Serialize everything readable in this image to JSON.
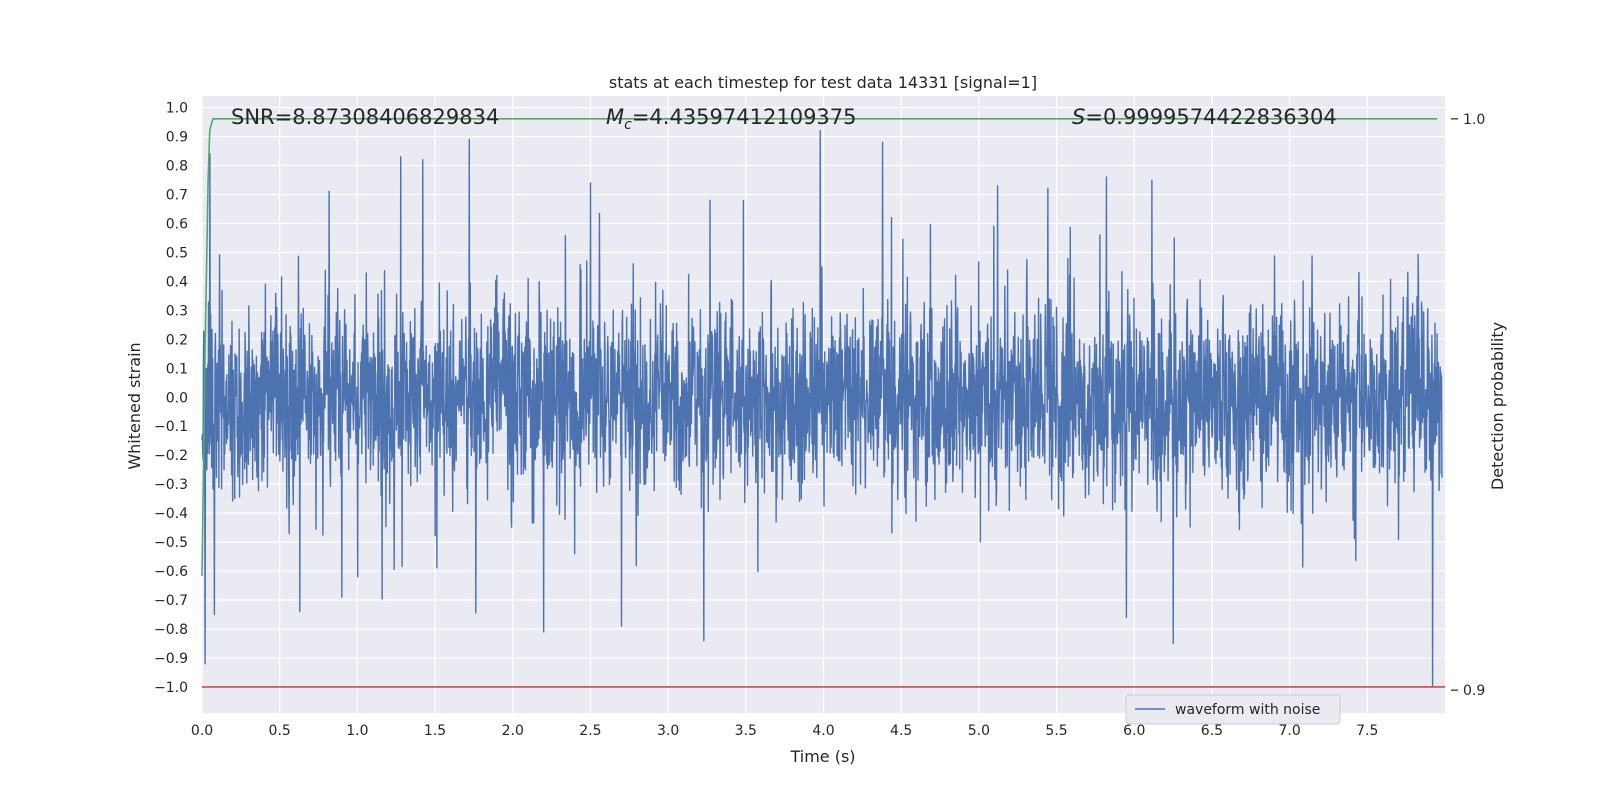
{
  "chart_data": {
    "type": "line",
    "title": "stats at each timestep for test data 14331 [signal=1]",
    "xlabel": "Time (s)",
    "ylabel": "Whitened strain",
    "y2label": "Detection probability",
    "xlim": [
      0.0,
      8.0
    ],
    "ylim": [
      -1.09,
      1.04
    ],
    "y2lim": [
      0.896,
      1.004
    ],
    "x_ticks": [
      "0.0",
      "0.5",
      "1.0",
      "1.5",
      "2.0",
      "2.5",
      "3.0",
      "3.5",
      "4.0",
      "4.5",
      "5.0",
      "5.5",
      "6.0",
      "6.5",
      "7.0",
      "7.5"
    ],
    "y_ticks": [
      "1.0",
      "0.9",
      "0.8",
      "0.7",
      "0.6",
      "0.5",
      "0.4",
      "0.3",
      "0.2",
      "0.1",
      "0.0",
      "−0.1",
      "−0.2",
      "−0.3",
      "−0.4",
      "−0.5",
      "−0.6",
      "−0.7",
      "−0.8",
      "−0.9",
      "−1.0"
    ],
    "y2_ticks": [
      "1.0",
      "0.9"
    ],
    "grid": true,
    "legend_position": "lower-right",
    "annotations": {
      "snr": "SNR=8.87308406829834",
      "mc_symbol": "M",
      "mc_sub": "c",
      "mc_value": "=4.43597412109375",
      "s_symbol": "S",
      "s_value": "=0.9999574422836304"
    },
    "series": [
      {
        "name": "waveform with noise",
        "axis": "left",
        "color": "#4c72b0",
        "noise_description": "dense whitened strain noise, roughly ±0.35 with spikes",
        "spikes_x": [
          0.02,
          0.05,
          0.08,
          0.63,
          0.9,
          1.28,
          1.42,
          1.72,
          2.2,
          2.5,
          2.7,
          3.23,
          3.27,
          3.98,
          4.38,
          5.12,
          5.82,
          5.95,
          6.25,
          7.92
        ],
        "spikes_y": [
          -0.92,
          0.84,
          -0.75,
          -0.74,
          -0.69,
          0.83,
          0.82,
          0.89,
          -0.81,
          0.74,
          -0.79,
          -0.84,
          0.68,
          0.92,
          0.88,
          0.73,
          0.76,
          -0.76,
          -0.85,
          -1.0
        ]
      },
      {
        "name": "detection probability",
        "axis": "right",
        "color": "#55a868",
        "x": [
          0.0,
          0.02,
          0.04,
          0.05,
          0.07,
          0.5,
          1.0,
          2.0,
          3.0,
          4.0,
          5.0,
          6.0,
          7.0,
          7.95
        ],
        "y": [
          0.92,
          0.96,
          0.99,
          0.998,
          1.0,
          1.0,
          1.0,
          1.0,
          1.0,
          1.0,
          1.0,
          1.0,
          1.0,
          1.0
        ]
      },
      {
        "axis": "left",
        "color": "#c44e52",
        "x": [
          0.0,
          8.0
        ],
        "y": [
          -1.0,
          -1.0
        ]
      }
    ]
  }
}
